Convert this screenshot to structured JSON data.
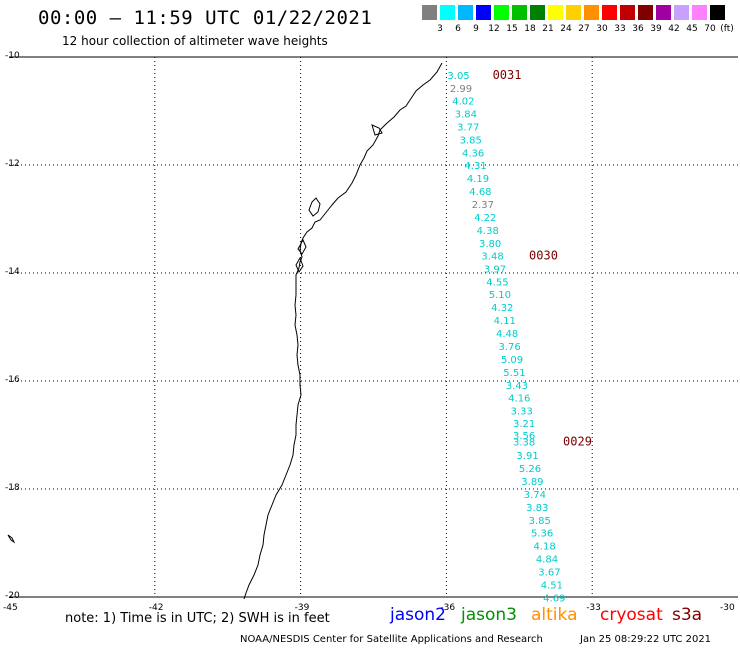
{
  "header": {
    "title": "00:00 – 11:59 UTC 01/22/2021",
    "subtitle": "12 hour collection of altimeter wave heights"
  },
  "legend": {
    "unit": "(ft)",
    "bins": [
      {
        "label": "3",
        "color": "#808080"
      },
      {
        "label": "6",
        "color": "#00ffff"
      },
      {
        "label": "9",
        "color": "#00b8ff"
      },
      {
        "label": "12",
        "color": "#0000ff"
      },
      {
        "label": "15",
        "color": "#00ff00"
      },
      {
        "label": "18",
        "color": "#00c000"
      },
      {
        "label": "21",
        "color": "#008000"
      },
      {
        "label": "24",
        "color": "#ffff00"
      },
      {
        "label": "27",
        "color": "#ffd000"
      },
      {
        "label": "30",
        "color": "#ff9000"
      },
      {
        "label": "33",
        "color": "#ff0000"
      },
      {
        "label": "36",
        "color": "#c00000"
      },
      {
        "label": "39",
        "color": "#800000"
      },
      {
        "label": "42",
        "color": "#a000a0"
      },
      {
        "label": "45",
        "color": "#c8a0ff"
      },
      {
        "label": "70",
        "color": "#ff80ff"
      },
      {
        "label": "",
        "color": "#000000"
      }
    ]
  },
  "axes": {
    "lat_labels": [
      "-10",
      "-12",
      "-14",
      "-16",
      "-18",
      "-20"
    ],
    "lon_labels": [
      "-45",
      "-42",
      "-39",
      "-36",
      "-33",
      "-30"
    ],
    "lat_range": [
      -20,
      -10
    ],
    "lon_range": [
      -45,
      -30
    ]
  },
  "observations": [
    {
      "lat": -10.33,
      "lon": -35.75,
      "value": "3.05",
      "color": "#00cccc"
    },
    {
      "lat": -10.57,
      "lon": -35.7,
      "value": "2.99",
      "color": "#808080"
    },
    {
      "lat": -10.81,
      "lon": -35.65,
      "value": "4.02",
      "color": "#00cccc"
    },
    {
      "lat": -11.05,
      "lon": -35.6,
      "value": "3.84",
      "color": "#00cccc"
    },
    {
      "lat": -11.29,
      "lon": -35.55,
      "value": "3.77",
      "color": "#00cccc"
    },
    {
      "lat": -11.53,
      "lon": -35.5,
      "value": "3.85",
      "color": "#00cccc"
    },
    {
      "lat": -11.77,
      "lon": -35.45,
      "value": "4.36",
      "color": "#00cccc"
    },
    {
      "lat": -12.0,
      "lon": -35.4,
      "value": "4.31",
      "color": "#00cccc"
    },
    {
      "lat": -12.24,
      "lon": -35.35,
      "value": "4.19",
      "color": "#00cccc"
    },
    {
      "lat": -12.48,
      "lon": -35.3,
      "value": "4.68",
      "color": "#00cccc"
    },
    {
      "lat": -12.72,
      "lon": -35.25,
      "value": "2.37",
      "color": "#808080"
    },
    {
      "lat": -12.96,
      "lon": -35.2,
      "value": "4.22",
      "color": "#00cccc"
    },
    {
      "lat": -13.2,
      "lon": -35.15,
      "value": "4.38",
      "color": "#00cccc"
    },
    {
      "lat": -13.44,
      "lon": -35.1,
      "value": "3.80",
      "color": "#00cccc"
    },
    {
      "lat": -13.68,
      "lon": -35.05,
      "value": "3.48",
      "color": "#00cccc"
    },
    {
      "lat": -13.92,
      "lon": -35.0,
      "value": "3.97",
      "color": "#00cccc"
    },
    {
      "lat": -14.16,
      "lon": -34.95,
      "value": "4.55",
      "color": "#00cccc"
    },
    {
      "lat": -14.39,
      "lon": -34.9,
      "value": "5.10",
      "color": "#00cccc"
    },
    {
      "lat": -14.63,
      "lon": -34.85,
      "value": "4.32",
      "color": "#00cccc"
    },
    {
      "lat": -14.87,
      "lon": -34.8,
      "value": "4.11",
      "color": "#00cccc"
    },
    {
      "lat": -15.11,
      "lon": -34.75,
      "value": "4.48",
      "color": "#00cccc"
    },
    {
      "lat": -15.35,
      "lon": -34.7,
      "value": "3.76",
      "color": "#00cccc"
    },
    {
      "lat": -15.59,
      "lon": -34.65,
      "value": "5.09",
      "color": "#00cccc"
    },
    {
      "lat": -15.83,
      "lon": -34.6,
      "value": "5.51",
      "color": "#00cccc"
    },
    {
      "lat": -16.07,
      "lon": -34.55,
      "value": "3.43",
      "color": "#00cccc"
    },
    {
      "lat": -16.31,
      "lon": -34.5,
      "value": "4.16",
      "color": "#00cccc"
    },
    {
      "lat": -16.55,
      "lon": -34.45,
      "value": "3.33",
      "color": "#00cccc"
    },
    {
      "lat": -16.78,
      "lon": -34.4,
      "value": "3.21",
      "color": "#00cccc"
    },
    {
      "lat": -17.0,
      "lon": -34.4,
      "value": "3.56",
      "color": "#00cccc"
    },
    {
      "lat": -17.12,
      "lon": -34.4,
      "value": "3.38",
      "color": "#00cccc"
    },
    {
      "lat": -17.37,
      "lon": -34.33,
      "value": "3.91",
      "color": "#00cccc"
    },
    {
      "lat": -17.61,
      "lon": -34.28,
      "value": "5.26",
      "color": "#00cccc"
    },
    {
      "lat": -17.85,
      "lon": -34.23,
      "value": "3.89",
      "color": "#00cccc"
    },
    {
      "lat": -18.09,
      "lon": -34.18,
      "value": "3.74",
      "color": "#00cccc"
    },
    {
      "lat": -18.33,
      "lon": -34.13,
      "value": "3.83",
      "color": "#00cccc"
    },
    {
      "lat": -18.57,
      "lon": -34.08,
      "value": "3.85",
      "color": "#00cccc"
    },
    {
      "lat": -18.81,
      "lon": -34.03,
      "value": "5.36",
      "color": "#00cccc"
    },
    {
      "lat": -19.05,
      "lon": -33.98,
      "value": "4.18",
      "color": "#00cccc"
    },
    {
      "lat": -19.29,
      "lon": -33.93,
      "value": "4.84",
      "color": "#00cccc"
    },
    {
      "lat": -19.53,
      "lon": -33.88,
      "value": "3.67",
      "color": "#00cccc"
    },
    {
      "lat": -19.77,
      "lon": -33.83,
      "value": "4.51",
      "color": "#00cccc"
    },
    {
      "lat": -20.01,
      "lon": -33.78,
      "value": "4.69",
      "color": "#00cccc"
    }
  ],
  "passes": [
    {
      "label": "0031",
      "lat": -10.33,
      "lon": -35.05
    },
    {
      "label": "0030",
      "lat": -13.68,
      "lon": -34.3
    },
    {
      "label": "0029",
      "lat": -17.12,
      "lon": -33.6
    }
  ],
  "footer": {
    "note": "note: 1) Time is in UTC; 2) SWH is in feet",
    "satellites": [
      {
        "name": "jason2",
        "color": "#0000ff"
      },
      {
        "name": "jason3",
        "color": "#009000"
      },
      {
        "name": "altika",
        "color": "#ff9000"
      },
      {
        "name": "cryosat",
        "color": "#ff0000"
      },
      {
        "name": "s3a",
        "color": "#800000"
      }
    ],
    "credit": "NOAA/NESDIS Center for Satellite Applications and Research",
    "timestamp": "Jan 25 08:29:22 UTC 2021"
  }
}
